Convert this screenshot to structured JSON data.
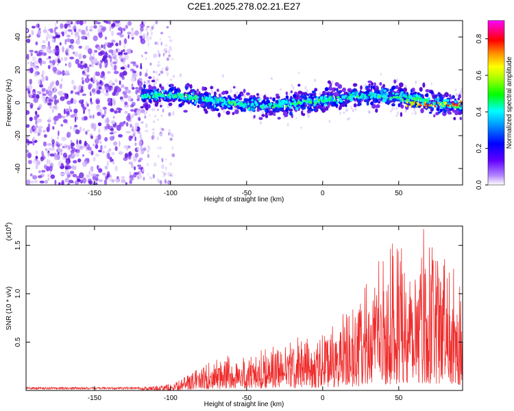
{
  "title": "C2E1.2025.278.02.21.E27",
  "chart_data": [
    {
      "type": "heatmap",
      "name": "spectrogram",
      "xlabel": "Height of straight line (km)",
      "ylabel": "Frequency (Hz)",
      "xlim": [
        -195,
        92
      ],
      "ylim": [
        -50,
        50
      ],
      "xticks": [
        -150,
        -100,
        -50,
        0,
        50
      ],
      "yticks": [
        -40,
        -20,
        0,
        20,
        40
      ],
      "noise_region_x": [
        -195,
        -118
      ],
      "sparse_region_x": [
        -118,
        -98
      ],
      "signal_start_x": -119,
      "signal_freq_hz": 1.5,
      "signal_band_halfwidth_hz": 5,
      "colorbar": {
        "label": "Normalized spectral amplitude",
        "range": [
          0,
          0.9
        ],
        "ticks": [
          0.0,
          0.2,
          0.4,
          0.6,
          0.8
        ],
        "colors": [
          "#ffffff",
          "#8000ff",
          "#0000ff",
          "#00ffff",
          "#00ff00",
          "#ffff00",
          "#ff8000",
          "#ff0000",
          "#ff00ff"
        ]
      }
    },
    {
      "type": "line",
      "name": "snr",
      "xlabel": "Height of straight line (km)",
      "ylabel": "SNR (10 * v/v)",
      "multiplier_label": "(x10",
      "multiplier_exp": "4",
      "multiplier_close": ")",
      "xlim": [
        -195,
        92
      ],
      "ylim": [
        0,
        1.7
      ],
      "xticks": [
        -150,
        -100,
        -50,
        0,
        50
      ],
      "yticks": [
        0.5,
        1.0,
        1.5
      ],
      "color": "#ef2b2b",
      "envelope": [
        {
          "x": -195,
          "y": 0.025
        },
        {
          "x": -120,
          "y": 0.03
        },
        {
          "x": -100,
          "y": 0.06
        },
        {
          "x": -90,
          "y": 0.14
        },
        {
          "x": -80,
          "y": 0.24
        },
        {
          "x": -60,
          "y": 0.32
        },
        {
          "x": -40,
          "y": 0.38
        },
        {
          "x": -20,
          "y": 0.45
        },
        {
          "x": 0,
          "y": 0.55
        },
        {
          "x": 20,
          "y": 0.72
        },
        {
          "x": 35,
          "y": 1.1
        },
        {
          "x": 50,
          "y": 1.35
        },
        {
          "x": 62,
          "y": 1.5
        },
        {
          "x": 75,
          "y": 1.35
        },
        {
          "x": 92,
          "y": 1.1
        }
      ]
    }
  ]
}
